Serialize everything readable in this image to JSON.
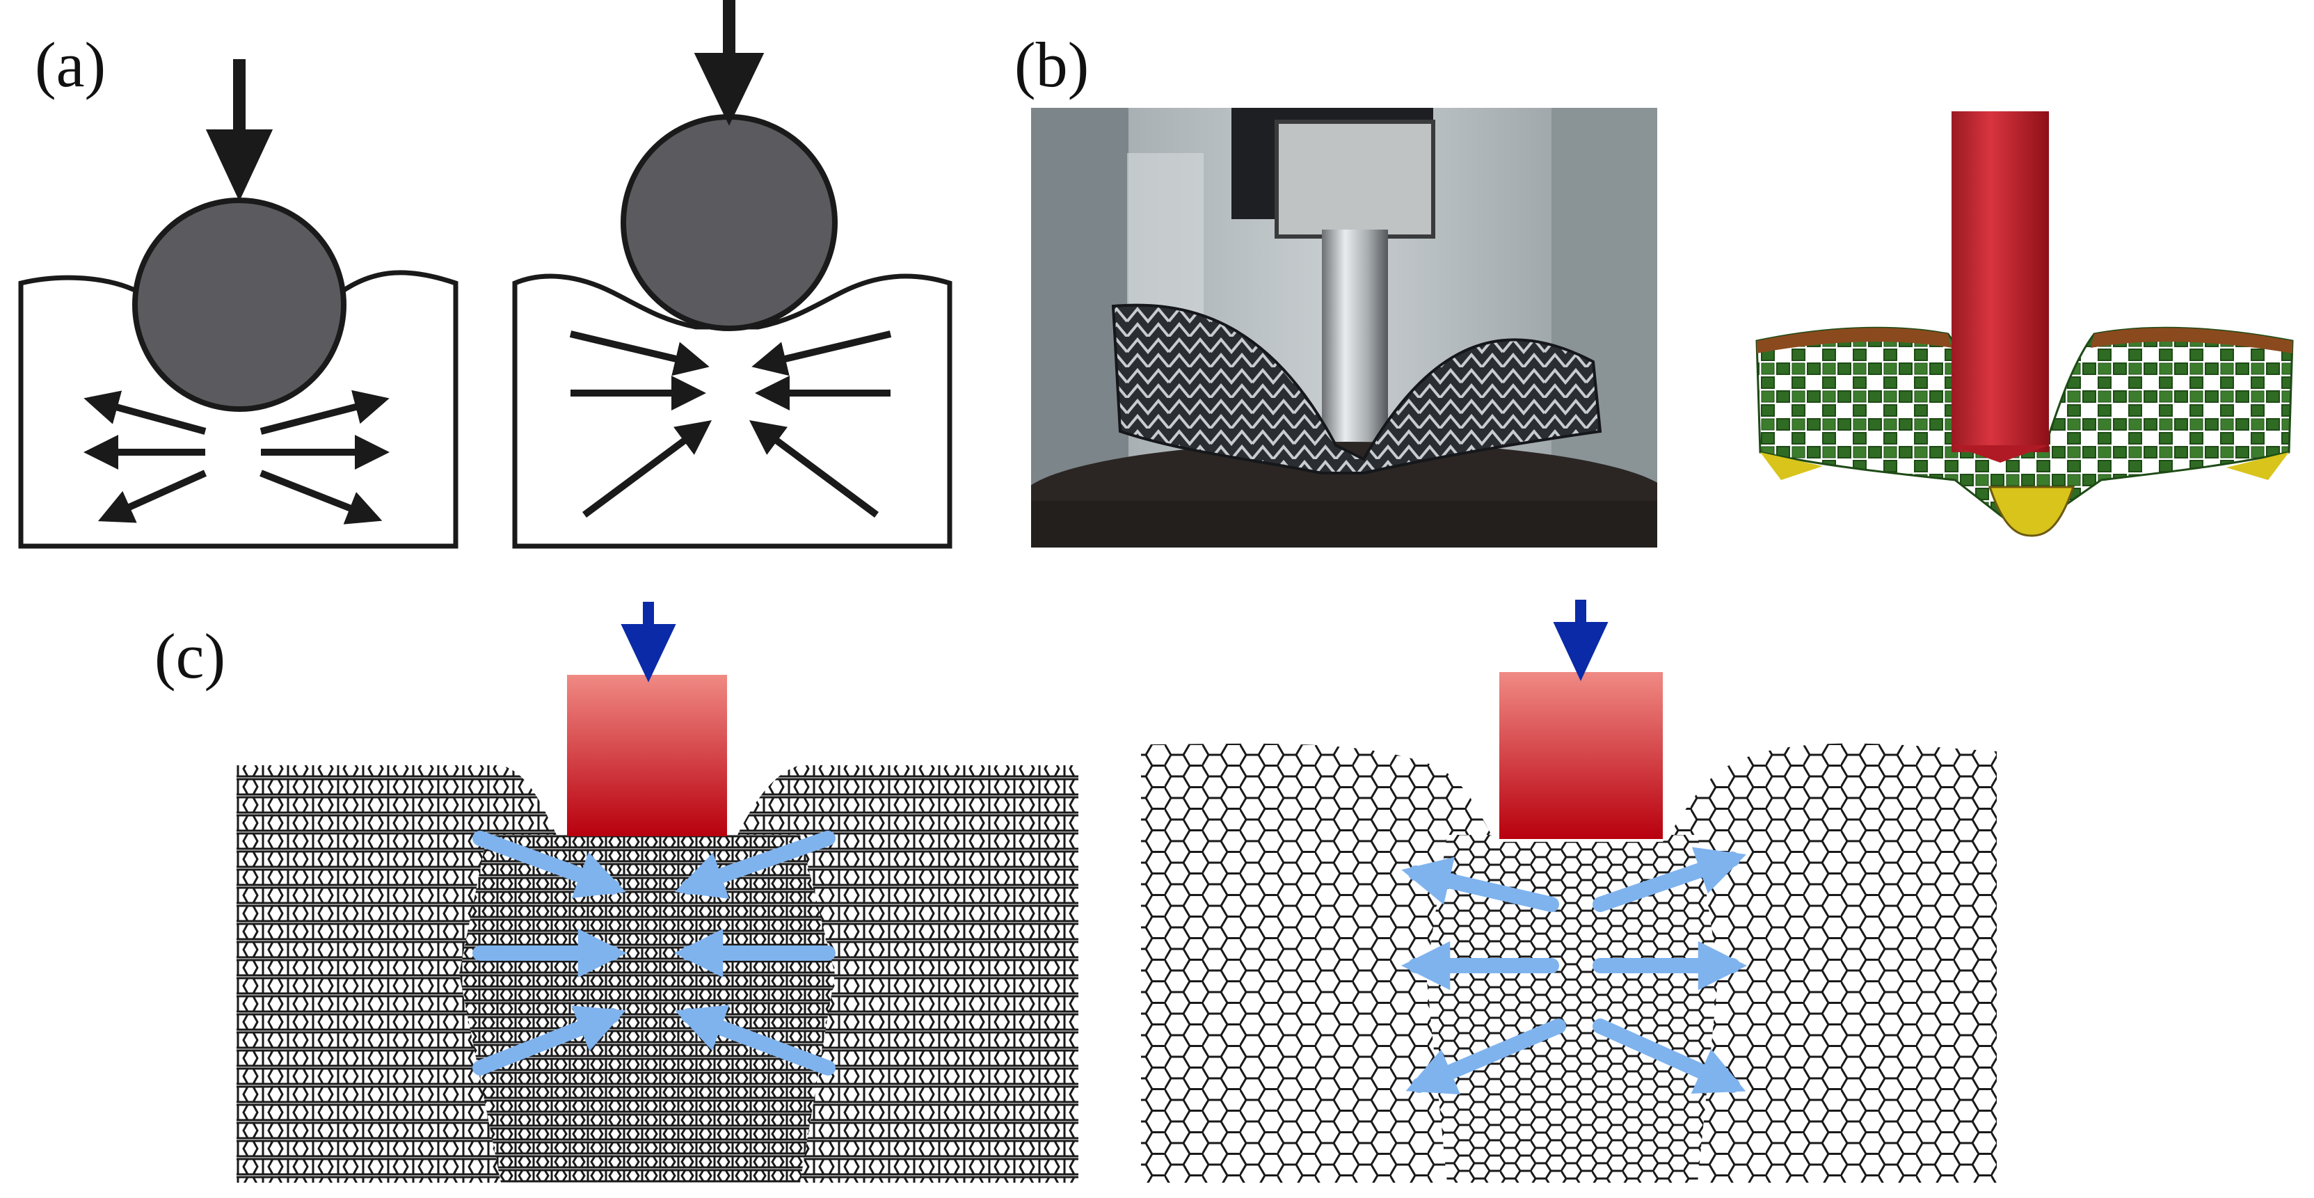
{
  "labels": {
    "a": "(a)",
    "b": "(b)",
    "c": "(c)"
  },
  "colors": {
    "ball": "#5b5b5f",
    "outline": "#1a1a1a",
    "load_arrow_blue": "#0a2aa8",
    "indenter_top": "#f08a84",
    "indenter_bottom": "#b8000e",
    "flow_arrow_light_blue": "#7fb3ee",
    "sim_rod": "#c8242e",
    "sim_lattice_green": "#2f6b23",
    "sim_lattice_yellow": "#d8c41a",
    "sim_edge_brown": "#8b4a1e"
  },
  "panels": {
    "a": {
      "items": [
        "conventional-material-indent-diagram",
        "auxetic-material-indent-diagram"
      ]
    },
    "b": {
      "items": [
        "experimental-indentation-photo",
        "simulation-indentation-render"
      ]
    },
    "c": {
      "items": [
        "reentrant-lattice-indent",
        "hexagonal-honeycomb-indent"
      ]
    }
  }
}
